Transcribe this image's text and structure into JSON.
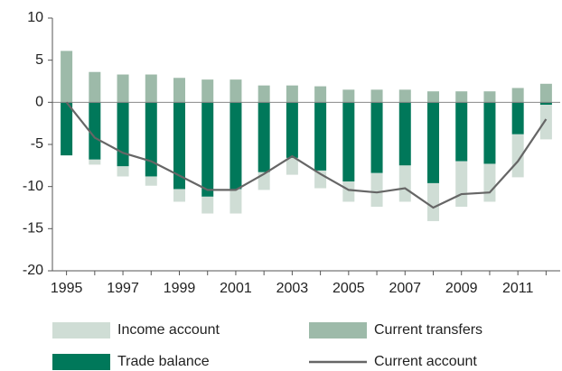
{
  "chart_data": {
    "type": "bar",
    "categories": [
      "1995",
      null,
      "1997",
      null,
      "1999",
      null,
      "2001",
      null,
      "2003",
      null,
      "2005",
      null,
      "2007",
      null,
      "2009",
      null,
      "2011",
      null
    ],
    "series": [
      {
        "name": "Trade balance",
        "color": "#00785a",
        "values": [
          -6.3,
          -6.8,
          -7.6,
          -8.8,
          -10.3,
          -11.2,
          -10.3,
          -8.3,
          -6.6,
          -8.1,
          -9.4,
          -8.4,
          -7.5,
          -9.6,
          -7.0,
          -7.3,
          -3.8,
          -0.3
        ]
      },
      {
        "name": "Income account",
        "color": "#cfddd5",
        "values": [
          0,
          -0.6,
          -1.2,
          -1.1,
          -1.5,
          -2.0,
          -2.9,
          -2.1,
          -2.0,
          -2.1,
          -2.4,
          -4.0,
          -4.3,
          -4.5,
          -5.4,
          -4.5,
          -5.1,
          -4.1
        ]
      },
      {
        "name": "Current transfers",
        "color": "#9dbaa9",
        "values": [
          6.1,
          3.6,
          3.3,
          3.3,
          2.9,
          2.7,
          2.7,
          2.0,
          2.0,
          1.9,
          1.5,
          1.5,
          1.5,
          1.3,
          1.3,
          1.3,
          1.7,
          2.2
        ]
      },
      {
        "name": "Current account",
        "color": "#666666",
        "type": "line",
        "values": [
          0,
          -4.2,
          -6.0,
          -7.0,
          -8.7,
          -10.4,
          -10.4,
          -8.5,
          -6.4,
          -8.5,
          -10.4,
          -10.7,
          -10.2,
          -12.5,
          -10.9,
          -10.7,
          -7.0,
          -2.0
        ]
      }
    ],
    "ylim": [
      -20,
      10
    ],
    "yticks": [
      10,
      5,
      0,
      -5,
      -10,
      -15,
      -20
    ]
  }
}
